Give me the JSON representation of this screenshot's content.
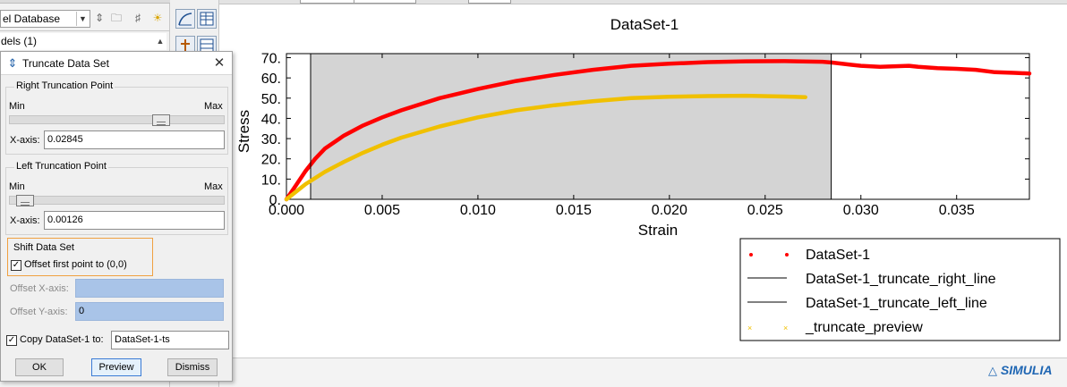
{
  "model_tree": {
    "database_select": "el Database",
    "models_item": "dels (1)"
  },
  "chart_data": {
    "type": "line",
    "title": "DataSet-1",
    "xlabel": "Strain",
    "ylabel": "Stress",
    "xlim": [
      0.0,
      0.0388
    ],
    "ylim": [
      0.0,
      72.0
    ],
    "x_ticks": [
      "0.000",
      "0.005",
      "0.010",
      "0.015",
      "0.020",
      "0.025",
      "0.030",
      "0.035"
    ],
    "y_ticks": [
      "0.",
      "10.",
      "20.",
      "30.",
      "40.",
      "50.",
      "60.",
      "70."
    ],
    "grid": false,
    "shaded_region": [
      0.00126,
      0.02845
    ],
    "legend_position": "bottom-right",
    "series": [
      {
        "name": "DataSet-1",
        "color": "#ff0000",
        "marker": "dot",
        "x": [
          0.0,
          0.0005,
          0.001,
          0.0015,
          0.002,
          0.003,
          0.004,
          0.005,
          0.006,
          0.008,
          0.01,
          0.012,
          0.014,
          0.016,
          0.018,
          0.02,
          0.022,
          0.024,
          0.026,
          0.028,
          0.0285,
          0.0295,
          0.03,
          0.031,
          0.032,
          0.0325,
          0.033,
          0.034,
          0.035,
          0.036,
          0.037,
          0.038,
          0.0388
        ],
        "y": [
          0.0,
          7.0,
          14.0,
          20.0,
          25.0,
          31.5,
          36.5,
          40.5,
          44.0,
          50.0,
          54.5,
          58.5,
          61.5,
          64.0,
          66.0,
          67.0,
          67.8,
          68.2,
          68.3,
          68.0,
          67.6,
          66.5,
          66.0,
          65.5,
          65.8,
          66.0,
          65.5,
          64.8,
          64.5,
          64.0,
          62.8,
          62.5,
          62.2
        ]
      },
      {
        "name": "DataSet-1_truncate_right_line",
        "color": "#000000",
        "marker": "line",
        "x": [
          0.02845,
          0.02845
        ],
        "y": [
          0.0,
          72.0
        ]
      },
      {
        "name": "DataSet-1_truncate_left_line",
        "color": "#000000",
        "marker": "line",
        "x": [
          0.00126,
          0.00126
        ],
        "y": [
          0.0,
          72.0
        ]
      },
      {
        "name": "_truncate_preview",
        "color": "#f0c000",
        "marker": "x",
        "x": [
          0.0,
          0.001,
          0.002,
          0.003,
          0.004,
          0.005,
          0.006,
          0.008,
          0.01,
          0.012,
          0.014,
          0.016,
          0.018,
          0.02,
          0.022,
          0.024,
          0.026,
          0.0271
        ],
        "y": [
          0.0,
          7.5,
          13.5,
          18.5,
          23.0,
          27.0,
          30.5,
          36.0,
          40.5,
          44.0,
          46.5,
          48.5,
          50.0,
          50.7,
          51.0,
          51.2,
          50.8,
          50.5
        ]
      }
    ]
  },
  "dialog": {
    "title": "Truncate Data Set",
    "right_group": {
      "label": "Right Truncation Point",
      "min_label": "Min",
      "max_label": "Max",
      "slider_fraction": 0.725,
      "xaxis_label": "X-axis:",
      "xaxis_value": "0.02845"
    },
    "left_group": {
      "label": "Left Truncation Point",
      "min_label": "Min",
      "max_label": "Max",
      "slider_fraction": 0.03,
      "xaxis_label": "X-axis:",
      "xaxis_value": "0.00126"
    },
    "shift_group": {
      "label": "Shift Data Set",
      "offset_checkbox_label": "Offset first point to (0,0)",
      "offset_checked": true
    },
    "offset_x_label": "Offset X-axis:",
    "offset_x_value": "",
    "offset_y_label": "Offset Y-axis:",
    "offset_y_value": "0",
    "copy_checkbox_label": "Copy DataSet-1 to:",
    "copy_checked": true,
    "copy_target": "DataSet-1-ts",
    "buttons": {
      "ok": "OK",
      "preview": "Preview",
      "dismiss": "Dismiss"
    }
  },
  "branding": {
    "logo_text": "SIMULIA"
  }
}
